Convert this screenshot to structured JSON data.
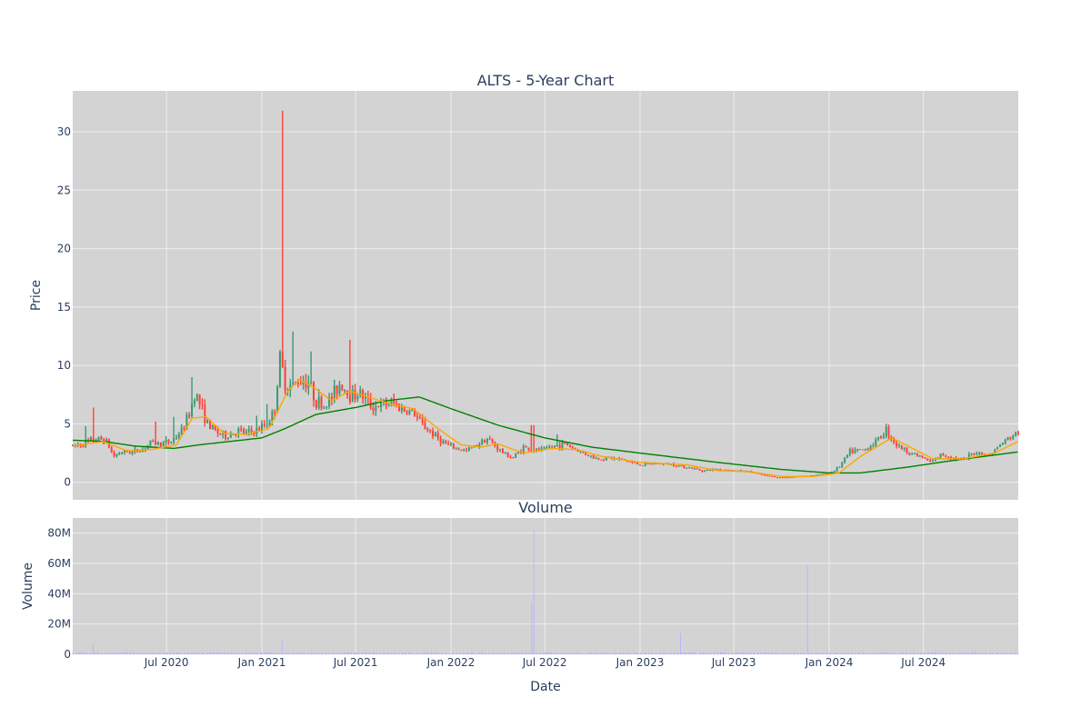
{
  "chart_data": [
    {
      "type": "candlestick",
      "title": "ALTS - 5-Year Chart",
      "ylabel": "Price",
      "ylim": [
        -1.5,
        33.5
      ],
      "yticks": [
        0,
        5,
        10,
        15,
        20,
        25,
        30
      ],
      "xlim": [
        "2020-01-02",
        "2024-12-31"
      ],
      "grid": true,
      "legend": "none",
      "colors": {
        "increasing": "#3d9970",
        "decreasing": "#ff4136",
        "sma50": "#ffa500",
        "sma200": "#008000",
        "plot_bg": "#d3d3d3",
        "grid": "#eeeeee"
      },
      "price_anchors": [
        [
          "2020-01-02",
          3.1
        ],
        [
          "2020-01-20",
          3.3
        ],
        [
          "2020-02-10",
          3.6
        ],
        [
          "2020-03-01",
          3.7
        ],
        [
          "2020-03-10",
          3.3
        ],
        [
          "2020-03-20",
          2.2
        ],
        [
          "2020-04-05",
          2.6
        ],
        [
          "2020-04-25",
          2.6
        ],
        [
          "2020-05-15",
          2.8
        ],
        [
          "2020-06-01",
          3.4
        ],
        [
          "2020-06-20",
          3.3
        ],
        [
          "2020-07-10",
          3.5
        ],
        [
          "2020-08-01",
          4.5
        ],
        [
          "2020-08-15",
          6.0
        ],
        [
          "2020-08-25",
          7.8
        ],
        [
          "2020-09-05",
          6.5
        ],
        [
          "2020-09-20",
          4.8
        ],
        [
          "2020-10-10",
          4.2
        ],
        [
          "2020-10-25",
          3.9
        ],
        [
          "2020-11-15",
          4.4
        ],
        [
          "2020-12-01",
          4.2
        ],
        [
          "2020-12-20",
          4.4
        ],
        [
          "2021-01-10",
          5.0
        ],
        [
          "2021-01-25",
          6.0
        ],
        [
          "2021-02-05",
          10.5
        ],
        [
          "2021-02-15",
          8.5
        ],
        [
          "2021-03-01",
          8.2
        ],
        [
          "2021-03-15",
          8.8
        ],
        [
          "2021-04-01",
          8.6
        ],
        [
          "2021-04-15",
          7.0
        ],
        [
          "2021-05-01",
          6.5
        ],
        [
          "2021-05-15",
          7.2
        ],
        [
          "2021-06-01",
          8.5
        ],
        [
          "2021-06-20",
          7.5
        ],
        [
          "2021-07-10",
          7.6
        ],
        [
          "2021-08-01",
          6.5
        ],
        [
          "2021-08-20",
          6.6
        ],
        [
          "2021-09-10",
          6.8
        ],
        [
          "2021-10-01",
          6.2
        ],
        [
          "2021-10-20",
          6.0
        ],
        [
          "2021-11-05",
          5.0
        ],
        [
          "2021-12-01",
          4.0
        ],
        [
          "2021-12-20",
          3.3
        ],
        [
          "2022-01-10",
          2.9
        ],
        [
          "2022-02-01",
          2.7
        ],
        [
          "2022-02-20",
          3.2
        ],
        [
          "2022-03-10",
          3.8
        ],
        [
          "2022-03-25",
          3.2
        ],
        [
          "2022-04-15",
          2.4
        ],
        [
          "2022-05-01",
          2.1
        ],
        [
          "2022-05-20",
          3.0
        ],
        [
          "2022-06-10",
          2.7
        ],
        [
          "2022-07-01",
          2.8
        ],
        [
          "2022-07-20",
          3.1
        ],
        [
          "2022-08-10",
          3.3
        ],
        [
          "2022-08-25",
          2.9
        ],
        [
          "2022-09-15",
          2.5
        ],
        [
          "2022-10-10",
          2.0
        ],
        [
          "2022-11-01",
          2.1
        ],
        [
          "2022-12-01",
          1.9
        ],
        [
          "2023-01-01",
          1.5
        ],
        [
          "2023-02-01",
          1.6
        ],
        [
          "2023-03-01",
          1.55
        ],
        [
          "2023-04-01",
          1.3
        ],
        [
          "2023-05-01",
          1.0
        ],
        [
          "2023-06-01",
          1.1
        ],
        [
          "2023-07-01",
          1.0
        ],
        [
          "2023-08-01",
          0.9
        ],
        [
          "2023-09-01",
          0.55
        ],
        [
          "2023-10-01",
          0.4
        ],
        [
          "2023-11-01",
          0.5
        ],
        [
          "2023-12-01",
          0.6
        ],
        [
          "2024-01-01",
          0.75
        ],
        [
          "2024-01-20",
          1.3
        ],
        [
          "2024-02-10",
          2.6
        ],
        [
          "2024-03-10",
          2.8
        ],
        [
          "2024-04-01",
          3.5
        ],
        [
          "2024-04-20",
          4.5
        ],
        [
          "2024-05-10",
          3.2
        ],
        [
          "2024-06-01",
          2.6
        ],
        [
          "2024-06-25",
          2.2
        ],
        [
          "2024-07-15",
          1.7
        ],
        [
          "2024-08-05",
          2.4
        ],
        [
          "2024-08-25",
          2.1
        ],
        [
          "2024-09-15",
          1.9
        ],
        [
          "2024-10-10",
          2.6
        ],
        [
          "2024-11-05",
          2.3
        ],
        [
          "2024-12-01",
          3.4
        ],
        [
          "2024-12-31",
          4.3
        ]
      ],
      "spikes": [
        [
          "2020-01-28",
          4.8
        ],
        [
          "2020-02-10",
          6.4
        ],
        [
          "2020-06-12",
          5.2
        ],
        [
          "2020-07-14",
          5.6
        ],
        [
          "2020-08-20",
          9.0
        ],
        [
          "2020-12-22",
          5.7
        ],
        [
          "2021-01-12",
          6.7
        ],
        [
          "2021-02-09",
          31.8
        ],
        [
          "2021-03-01",
          12.9
        ],
        [
          "2021-04-05",
          11.2
        ],
        [
          "2021-06-22",
          12.2
        ],
        [
          "2022-06-06",
          4.9
        ],
        [
          "2022-06-12",
          4.9
        ],
        [
          "2022-07-25",
          4.1
        ]
      ],
      "sma50_anchors": [
        [
          "2020-01-02",
          3.1
        ],
        [
          "2020-03-01",
          3.5
        ],
        [
          "2020-04-15",
          2.7
        ],
        [
          "2020-06-01",
          2.8
        ],
        [
          "2020-07-20",
          3.2
        ],
        [
          "2020-08-20",
          5.5
        ],
        [
          "2020-09-15",
          5.6
        ],
        [
          "2020-10-20",
          4.2
        ],
        [
          "2020-12-01",
          4.1
        ],
        [
          "2021-01-15",
          4.6
        ],
        [
          "2021-02-20",
          7.8
        ],
        [
          "2021-03-15",
          8.8
        ],
        [
          "2021-04-15",
          8.0
        ],
        [
          "2021-05-15",
          7.0
        ],
        [
          "2021-06-20",
          7.8
        ],
        [
          "2021-08-01",
          7.2
        ],
        [
          "2021-09-15",
          6.6
        ],
        [
          "2021-10-20",
          6.3
        ],
        [
          "2021-12-01",
          4.8
        ],
        [
          "2022-01-20",
          3.2
        ],
        [
          "2022-03-01",
          3.0
        ],
        [
          "2022-04-01",
          3.3
        ],
        [
          "2022-05-20",
          2.5
        ],
        [
          "2022-07-15",
          2.9
        ],
        [
          "2022-09-01",
          2.8
        ],
        [
          "2022-10-20",
          2.2
        ],
        [
          "2023-01-01",
          1.7
        ],
        [
          "2023-04-01",
          1.5
        ],
        [
          "2023-06-01",
          1.0
        ],
        [
          "2023-08-01",
          0.9
        ],
        [
          "2023-10-01",
          0.5
        ],
        [
          "2023-12-01",
          0.5
        ],
        [
          "2024-01-20",
          0.8
        ],
        [
          "2024-03-01",
          2.2
        ],
        [
          "2024-05-01",
          3.8
        ],
        [
          "2024-06-10",
          2.9
        ],
        [
          "2024-07-20",
          2.0
        ],
        [
          "2024-09-15",
          2.0
        ],
        [
          "2024-11-15",
          2.5
        ],
        [
          "2024-12-31",
          3.5
        ]
      ],
      "sma200_anchors": [
        [
          "2020-01-02",
          3.6
        ],
        [
          "2020-03-01",
          3.5
        ],
        [
          "2020-05-01",
          3.1
        ],
        [
          "2020-07-15",
          2.9
        ],
        [
          "2020-09-01",
          3.2
        ],
        [
          "2020-11-01",
          3.5
        ],
        [
          "2021-01-01",
          3.8
        ],
        [
          "2021-02-15",
          4.6
        ],
        [
          "2021-04-15",
          5.8
        ],
        [
          "2021-07-01",
          6.4
        ],
        [
          "2021-09-01",
          7.0
        ],
        [
          "2021-11-01",
          7.3
        ],
        [
          "2022-01-01",
          6.3
        ],
        [
          "2022-04-01",
          4.9
        ],
        [
          "2022-07-01",
          3.8
        ],
        [
          "2022-10-01",
          3.0
        ],
        [
          "2023-01-01",
          2.5
        ],
        [
          "2023-06-01",
          1.7
        ],
        [
          "2023-10-01",
          1.1
        ],
        [
          "2024-01-01",
          0.8
        ],
        [
          "2024-03-01",
          0.8
        ],
        [
          "2024-06-01",
          1.3
        ],
        [
          "2024-09-01",
          1.9
        ],
        [
          "2024-12-31",
          2.6
        ]
      ]
    },
    {
      "type": "bar",
      "title": "Volume",
      "xlabel": "Date",
      "ylabel": "Volume",
      "ylim": [
        0,
        90000000
      ],
      "yticks": [
        0,
        20000000,
        40000000,
        60000000,
        80000000
      ],
      "ytick_labels": [
        "0",
        "20M",
        "40M",
        "60M",
        "80M"
      ],
      "xticks": [
        "2020-07-01",
        "2021-01-01",
        "2021-07-01",
        "2022-01-01",
        "2022-07-01",
        "2023-01-01",
        "2023-07-01",
        "2024-01-01",
        "2024-07-01"
      ],
      "xtick_labels": [
        "Jul 2020",
        "Jan 2021",
        "Jul 2021",
        "Jan 2022",
        "Jul 2022",
        "Jan 2023",
        "Jul 2023",
        "Jan 2024",
        "Jul 2024"
      ],
      "bar_color": "#b3b3ff",
      "base_volume": 800000,
      "spikes": [
        [
          "2020-02-10",
          7000000
        ],
        [
          "2021-02-09",
          9000000
        ],
        [
          "2022-06-06",
          34000000
        ],
        [
          "2022-06-10",
          82000000
        ],
        [
          "2023-03-20",
          14000000
        ],
        [
          "2023-11-20",
          59000000
        ]
      ]
    }
  ]
}
